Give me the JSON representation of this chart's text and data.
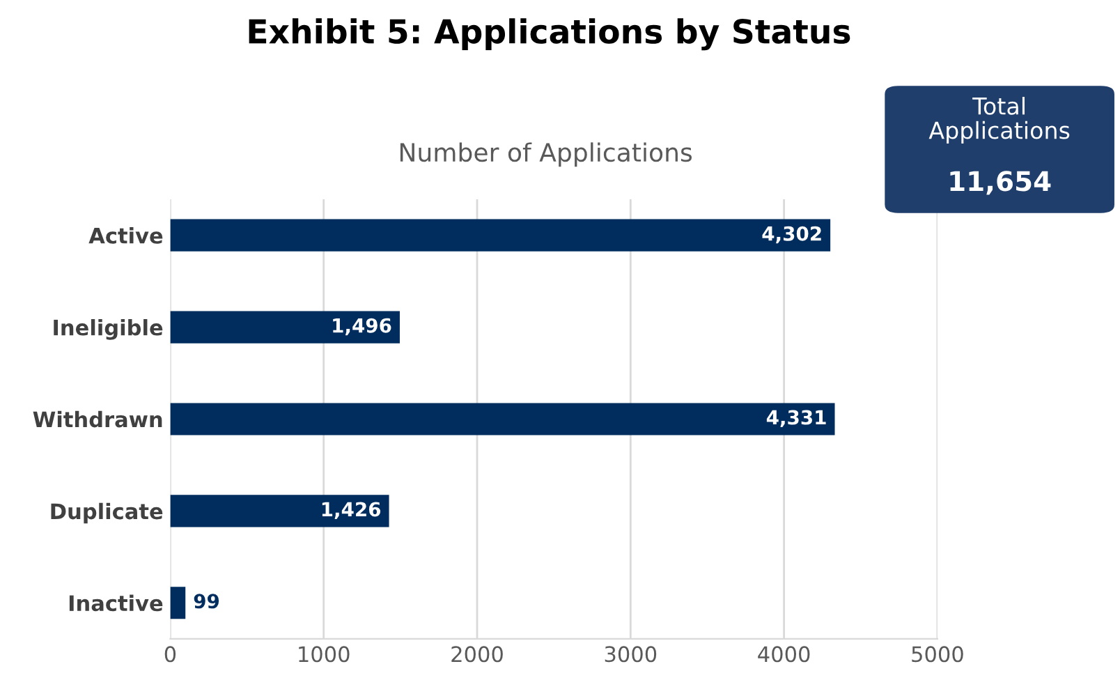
{
  "chart_data": {
    "type": "bar",
    "orientation": "horizontal",
    "title": "Exhibit 5: Applications by Status",
    "subtitle": "Number of Applications",
    "categories": [
      "Active",
      "Ineligible",
      "Withdrawn",
      "Duplicate",
      "Inactive"
    ],
    "values": [
      4302,
      1496,
      4331,
      1426,
      99
    ],
    "color": "#002d5e",
    "xlim": [
      0,
      5000
    ],
    "xticks": [
      0,
      1000,
      2000,
      3000,
      4000,
      5000
    ],
    "grid": "x",
    "value_labels": [
      "4,302",
      "1,496",
      "4,331",
      "1,426",
      "99"
    ],
    "annotations": [
      "Total\nApplications",
      "11,654"
    ]
  }
}
